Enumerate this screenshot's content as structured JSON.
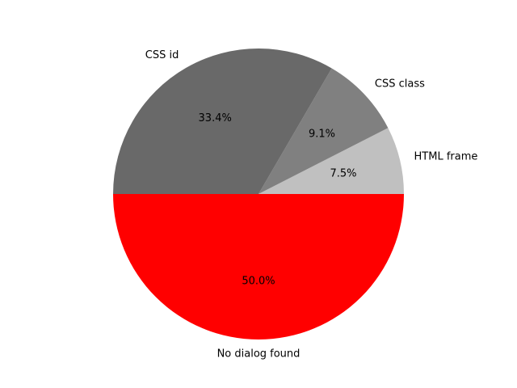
{
  "chart_data": {
    "type": "pie",
    "slices": [
      {
        "label": "HTML frame",
        "value": 7.5,
        "pct_label": "7.5%",
        "color": "#c0c0c0"
      },
      {
        "label": "CSS class",
        "value": 9.1,
        "pct_label": "9.1%",
        "color": "#808080"
      },
      {
        "label": "CSS id",
        "value": 33.4,
        "pct_label": "33.4%",
        "color": "#696969"
      },
      {
        "label": "No dialog found",
        "value": 50.0,
        "pct_label": "50.0%",
        "color": "#ff0000"
      }
    ],
    "start_angle_deg": 0,
    "direction": "counterclockwise"
  }
}
